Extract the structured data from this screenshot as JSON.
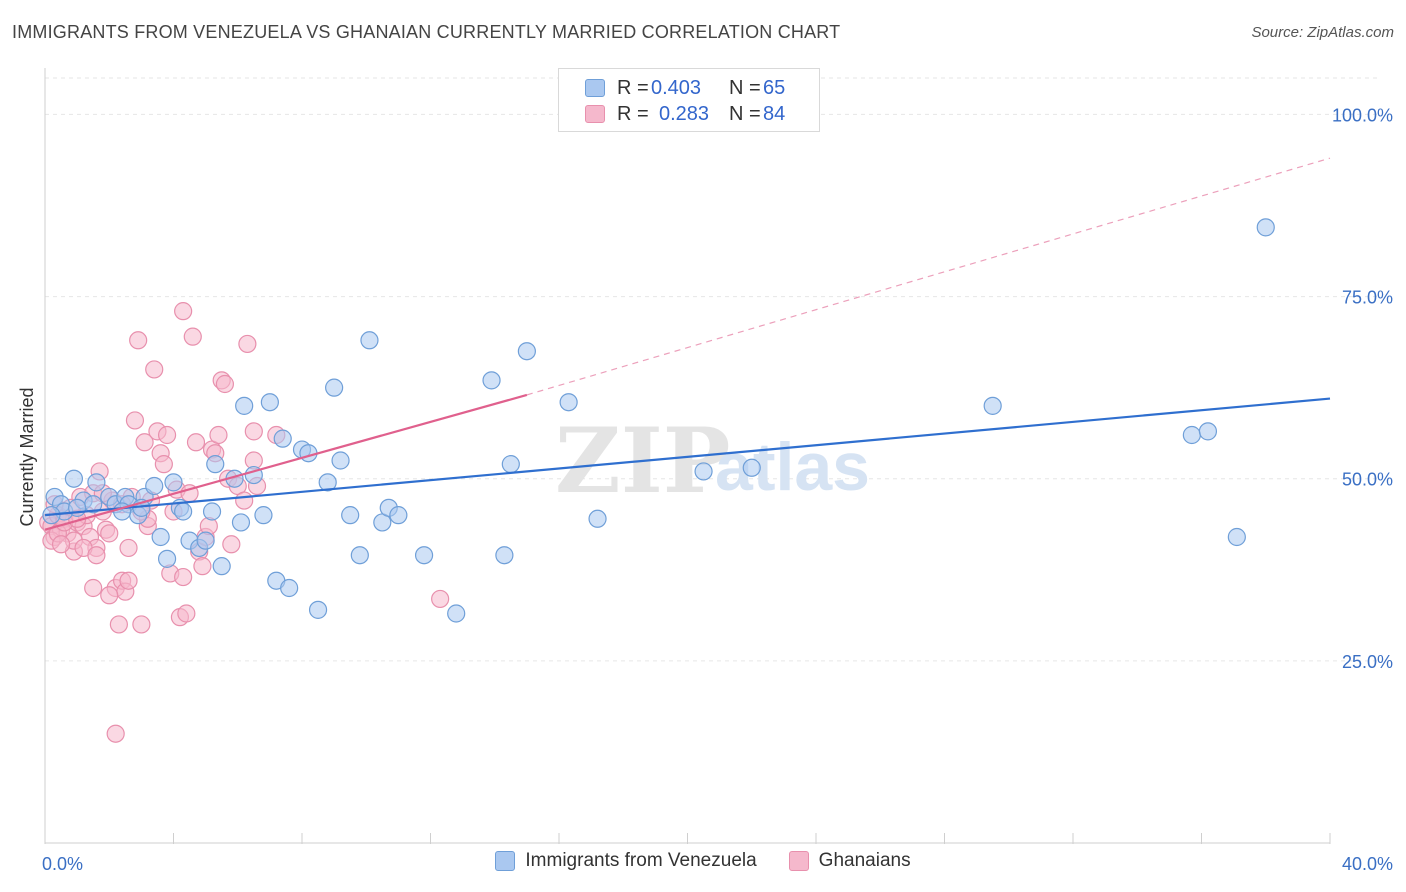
{
  "header": {
    "title": "IMMIGRANTS FROM VENEZUELA VS GHANAIAN CURRENTLY MARRIED CORRELATION CHART",
    "source": "Source: ZipAtlas.com"
  },
  "watermark": {
    "zip": "ZIP",
    "atlas": "atlas"
  },
  "legend_top": {
    "rows": [
      {
        "r_label": "R =",
        "r_value": "0.403",
        "n_label": "N =",
        "n_value": "65"
      },
      {
        "r_label": "R =",
        "r_value": "0.283",
        "n_label": "N =",
        "n_value": "84"
      }
    ]
  },
  "colors": {
    "blue_fill": "#aac8f0",
    "blue_stroke": "#6f9fd8",
    "blue_line": "#2f6fcf",
    "pink_fill": "#f5b8cc",
    "pink_stroke": "#e890ad",
    "pink_line": "#e0608d",
    "grid": "#e6e6e6",
    "axis_label": "#3a6fc4"
  },
  "chart_data": {
    "type": "scatter",
    "title": "IMMIGRANTS FROM VENEZUELA VS GHANAIAN CURRENTLY MARRIED CORRELATION CHART",
    "xlabel": "",
    "ylabel": "Currently Married",
    "xlim": [
      0,
      40
    ],
    "ylim": [
      0,
      105
    ],
    "x_tick_labels": [
      "0.0%",
      "40.0%"
    ],
    "y_ticks": [
      25,
      50,
      75,
      100
    ],
    "y_tick_labels": [
      "25.0%",
      "50.0%",
      "75.0%",
      "100.0%"
    ],
    "grid": true,
    "legend": "top-center",
    "series": [
      {
        "name": "Immigrants from Venezuela",
        "color": "blue",
        "r": 0.403,
        "n": 65,
        "trend": {
          "x0": 0,
          "y0": 45.0,
          "x1": 40,
          "y1": 61.0,
          "dashed_to": null
        },
        "points": [
          [
            0.3,
            47.5
          ],
          [
            0.5,
            46.5
          ],
          [
            0.6,
            45.5
          ],
          [
            0.9,
            50.0
          ],
          [
            1.2,
            47.0
          ],
          [
            1.5,
            46.5
          ],
          [
            1.6,
            49.5
          ],
          [
            2.0,
            47.5
          ],
          [
            2.2,
            46.5
          ],
          [
            2.5,
            47.5
          ],
          [
            2.6,
            46.5
          ],
          [
            2.9,
            45.0
          ],
          [
            3.1,
            47.5
          ],
          [
            3.4,
            49.0
          ],
          [
            3.6,
            42.0
          ],
          [
            3.8,
            39.0
          ],
          [
            4.0,
            49.5
          ],
          [
            4.2,
            46.0
          ],
          [
            4.3,
            45.5
          ],
          [
            4.5,
            41.5
          ],
          [
            4.8,
            40.5
          ],
          [
            5.0,
            41.5
          ],
          [
            5.2,
            45.5
          ],
          [
            5.3,
            52.0
          ],
          [
            5.5,
            38.0
          ],
          [
            5.9,
            50.0
          ],
          [
            6.1,
            44.0
          ],
          [
            6.2,
            60.0
          ],
          [
            6.5,
            50.5
          ],
          [
            6.8,
            45.0
          ],
          [
            7.0,
            60.5
          ],
          [
            7.2,
            36.0
          ],
          [
            7.4,
            55.5
          ],
          [
            7.6,
            35.0
          ],
          [
            8.0,
            54.0
          ],
          [
            8.2,
            53.5
          ],
          [
            8.5,
            32.0
          ],
          [
            8.8,
            49.5
          ],
          [
            9.0,
            62.5
          ],
          [
            9.2,
            52.5
          ],
          [
            9.5,
            45.0
          ],
          [
            9.8,
            39.5
          ],
          [
            10.1,
            69.0
          ],
          [
            10.5,
            44.0
          ],
          [
            10.7,
            46.0
          ],
          [
            11.0,
            45.0
          ],
          [
            11.8,
            39.5
          ],
          [
            12.8,
            31.5
          ],
          [
            13.9,
            63.5
          ],
          [
            14.3,
            39.5
          ],
          [
            14.5,
            52.0
          ],
          [
            15.0,
            67.5
          ],
          [
            16.3,
            60.5
          ],
          [
            17.2,
            44.5
          ],
          [
            20.5,
            51.0
          ],
          [
            22.0,
            51.5
          ],
          [
            29.5,
            60.0
          ],
          [
            35.7,
            56.0
          ],
          [
            36.2,
            56.5
          ],
          [
            37.1,
            42.0
          ],
          [
            38.0,
            84.5
          ],
          [
            0.2,
            45.0
          ],
          [
            1.0,
            46.0
          ],
          [
            2.4,
            45.5
          ],
          [
            3.0,
            46.0
          ]
        ]
      },
      {
        "name": "Ghanaians",
        "color": "pink",
        "r": 0.283,
        "n": 84,
        "trend": {
          "x0": 0,
          "y0": 43.0,
          "x1": 15.0,
          "y1": 61.5,
          "dashed_to": [
            40,
            94.0
          ]
        },
        "points": [
          [
            0.1,
            44.0
          ],
          [
            0.2,
            43.5
          ],
          [
            0.3,
            42.0
          ],
          [
            0.4,
            45.0
          ],
          [
            0.5,
            43.0
          ],
          [
            0.6,
            44.5
          ],
          [
            0.7,
            42.5
          ],
          [
            0.8,
            46.0
          ],
          [
            0.9,
            40.0
          ],
          [
            1.0,
            44.0
          ],
          [
            1.1,
            47.5
          ],
          [
            1.2,
            43.5
          ],
          [
            1.3,
            45.0
          ],
          [
            1.4,
            42.0
          ],
          [
            1.5,
            48.0
          ],
          [
            1.6,
            40.5
          ],
          [
            1.7,
            51.0
          ],
          [
            1.8,
            45.5
          ],
          [
            1.9,
            43.0
          ],
          [
            2.0,
            42.5
          ],
          [
            2.1,
            47.0
          ],
          [
            2.2,
            35.0
          ],
          [
            2.3,
            30.0
          ],
          [
            2.4,
            36.0
          ],
          [
            2.5,
            34.5
          ],
          [
            2.6,
            40.5
          ],
          [
            2.7,
            47.5
          ],
          [
            2.8,
            58.0
          ],
          [
            2.9,
            69.0
          ],
          [
            3.0,
            30.0
          ],
          [
            3.1,
            55.0
          ],
          [
            3.2,
            43.5
          ],
          [
            3.3,
            47.0
          ],
          [
            3.4,
            65.0
          ],
          [
            3.5,
            56.5
          ],
          [
            3.6,
            53.5
          ],
          [
            3.7,
            52.0
          ],
          [
            3.8,
            56.0
          ],
          [
            3.9,
            37.0
          ],
          [
            4.0,
            45.5
          ],
          [
            4.1,
            48.5
          ],
          [
            4.2,
            31.0
          ],
          [
            4.3,
            73.0
          ],
          [
            4.4,
            31.5
          ],
          [
            4.5,
            48.0
          ],
          [
            4.6,
            69.5
          ],
          [
            4.7,
            55.0
          ],
          [
            4.8,
            40.0
          ],
          [
            4.9,
            38.0
          ],
          [
            5.0,
            42.0
          ],
          [
            5.1,
            43.5
          ],
          [
            5.2,
            54.0
          ],
          [
            5.3,
            53.5
          ],
          [
            5.4,
            56.0
          ],
          [
            5.5,
            63.5
          ],
          [
            5.6,
            63.0
          ],
          [
            5.7,
            50.0
          ],
          [
            5.8,
            41.0
          ],
          [
            6.0,
            49.0
          ],
          [
            6.2,
            47.0
          ],
          [
            6.3,
            68.5
          ],
          [
            6.5,
            56.5
          ],
          [
            6.5,
            52.5
          ],
          [
            6.6,
            49.0
          ],
          [
            7.2,
            56.0
          ],
          [
            1.5,
            35.0
          ],
          [
            2.2,
            15.0
          ],
          [
            12.3,
            33.5
          ],
          [
            0.2,
            41.5
          ],
          [
            0.4,
            42.5
          ],
          [
            0.6,
            44.0
          ],
          [
            0.9,
            41.5
          ],
          [
            1.2,
            40.5
          ],
          [
            1.6,
            39.5
          ],
          [
            2.0,
            34.0
          ],
          [
            2.6,
            36.0
          ],
          [
            3.2,
            44.5
          ],
          [
            0.3,
            46.5
          ],
          [
            0.5,
            41.0
          ],
          [
            1.8,
            48.0
          ],
          [
            2.4,
            46.5
          ],
          [
            3.0,
            45.5
          ],
          [
            4.3,
            36.5
          ],
          [
            1.0,
            44.5
          ]
        ]
      }
    ]
  },
  "bottom_legend": {
    "items": [
      {
        "label": "Immigrants from Venezuela"
      },
      {
        "label": "Ghanaians"
      }
    ]
  }
}
